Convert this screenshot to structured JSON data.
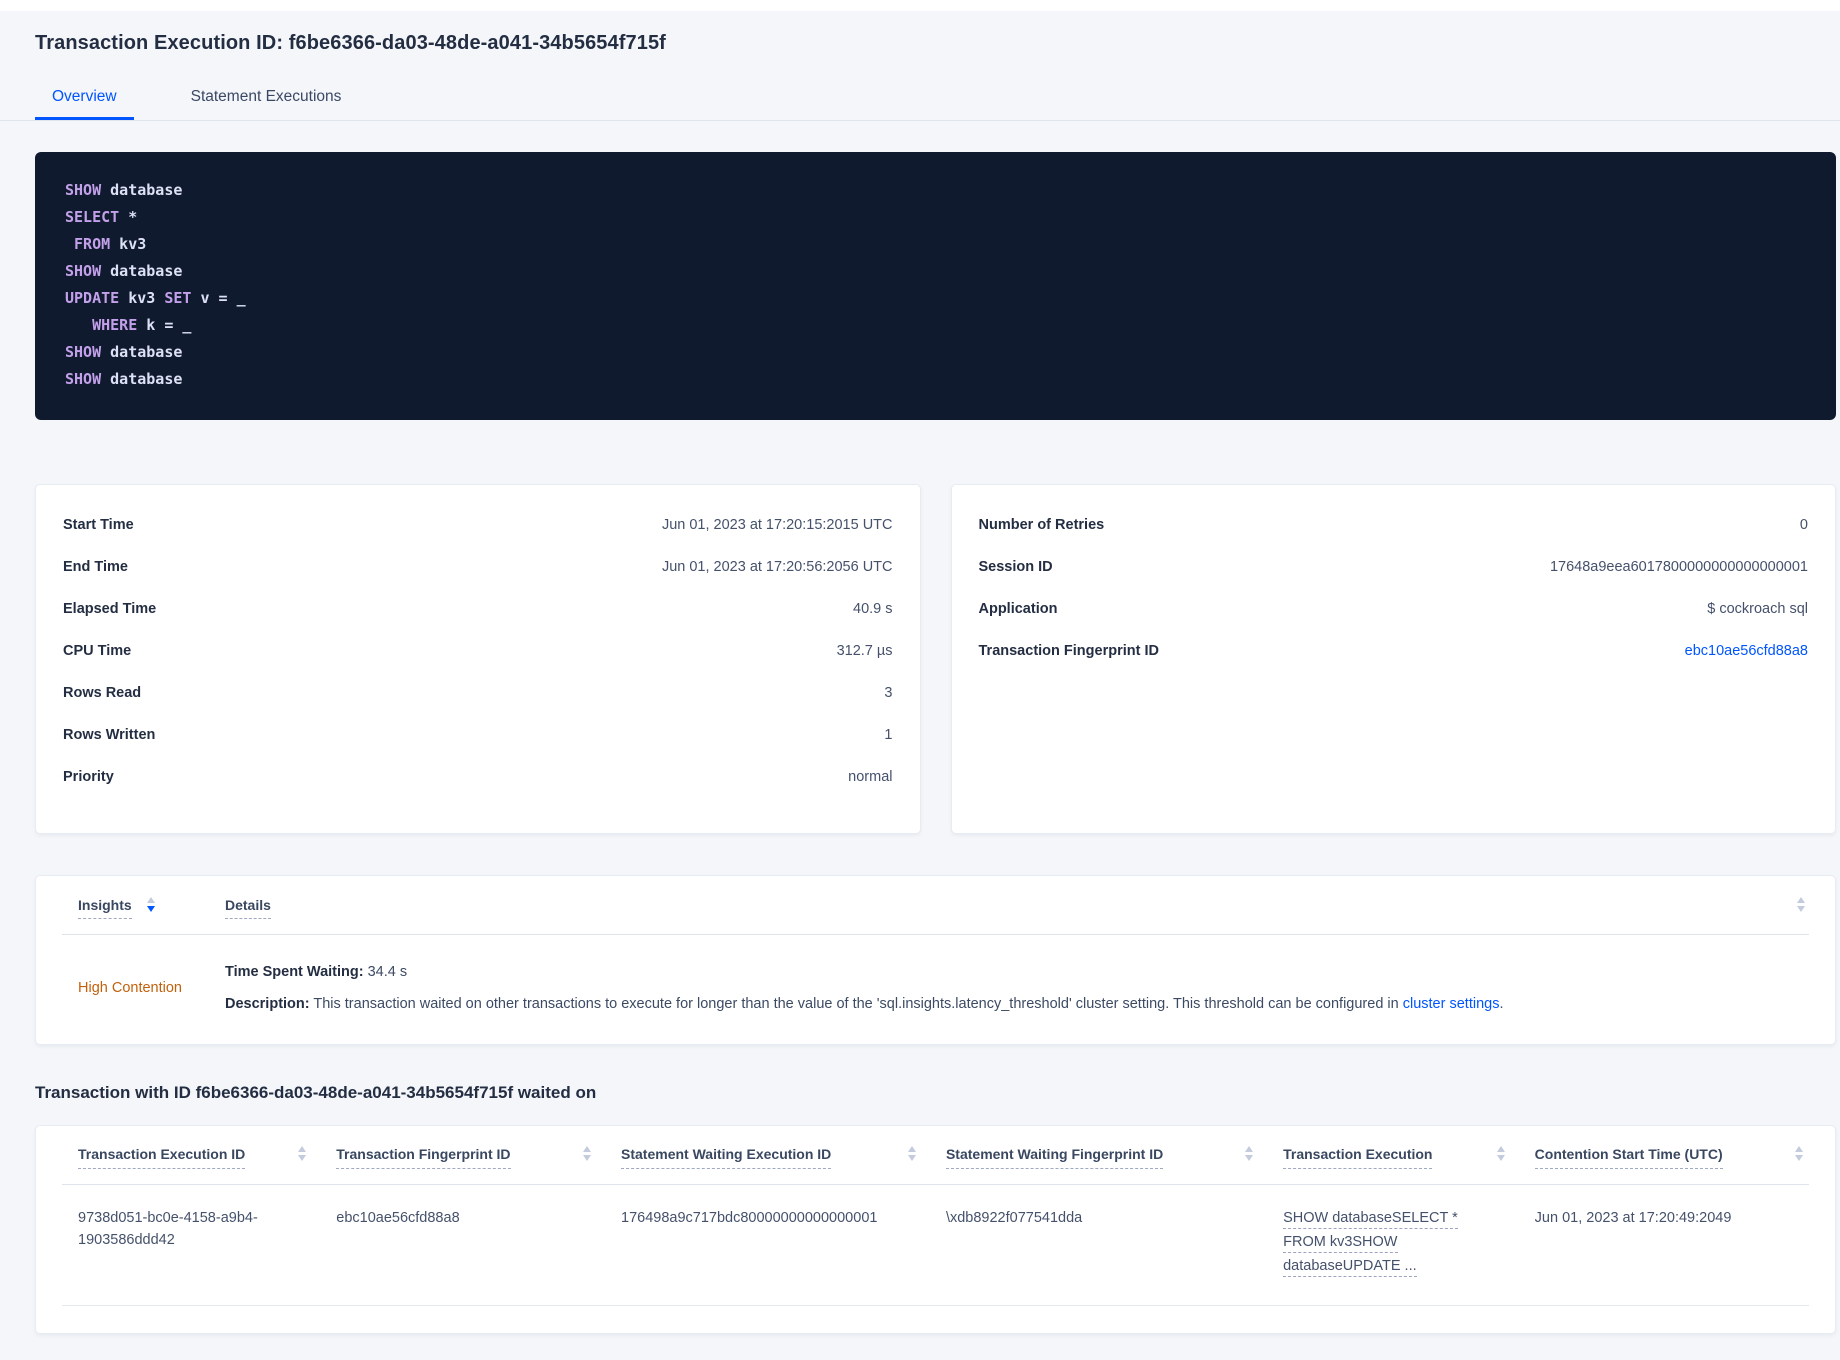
{
  "colors": {
    "accent_blue": "#0055ff",
    "insight_orange": "#c2610c",
    "code_background": "#101a2e",
    "code_keyword": "#c3a1ea",
    "code_plain": "#dde1f5",
    "page_background": "#f4f6fa"
  },
  "header": {
    "title": "Transaction Execution ID: f6be6366-da03-48de-a041-34b5654f715f",
    "tabs": [
      {
        "label": "Overview"
      },
      {
        "label": "Statement Executions"
      }
    ]
  },
  "sql_box": {
    "lines": [
      [
        {
          "t": "SHOW"
        },
        {
          "t": " database"
        }
      ],
      [
        {
          "t": "SELECT"
        },
        {
          "t": " *"
        }
      ],
      [
        {
          "t": " "
        },
        {
          "t": "FROM"
        },
        {
          "t": " kv3"
        }
      ],
      [
        {
          "t": "SHOW"
        },
        {
          "t": " database"
        }
      ],
      [
        {
          "t": "UPDATE"
        },
        {
          "t": " kv3 "
        },
        {
          "t": "SET"
        },
        {
          "t": " v = _"
        }
      ],
      [
        {
          "t": "   "
        },
        {
          "t": "WHERE"
        },
        {
          "t": " k = _"
        }
      ],
      [
        {
          "t": "SHOW"
        },
        {
          "t": " database"
        }
      ],
      [
        {
          "t": "SHOW"
        },
        {
          "t": " database"
        }
      ]
    ]
  },
  "summary_left": {
    "rows": [
      {
        "label": "Start Time",
        "value": "Jun 01, 2023 at 17:20:15:2015 UTC"
      },
      {
        "label": "End Time",
        "value": "Jun 01, 2023 at 17:20:56:2056 UTC"
      },
      {
        "label": "Elapsed Time",
        "value": "40.9 s"
      },
      {
        "label": "CPU Time",
        "value": "312.7 µs"
      },
      {
        "label": "Rows Read",
        "value": "3"
      },
      {
        "label": "Rows Written",
        "value": "1"
      },
      {
        "label": "Priority",
        "value": "normal"
      }
    ]
  },
  "summary_right": {
    "rows": [
      {
        "label": "Number of Retries",
        "value": "0"
      },
      {
        "label": "Session ID",
        "value": "17648a9eea6017800000000000000001"
      },
      {
        "label": "Application",
        "value": "$ cockroach sql"
      },
      {
        "label": "Transaction Fingerprint ID",
        "value": "ebc10ae56cfd88a8"
      }
    ]
  },
  "insights_table": {
    "col_insights": "Insights",
    "col_details": "Details",
    "row": {
      "insight": "High Contention",
      "waiting_label": "Time Spent Waiting:",
      "waiting_value": " 34.4 s",
      "desc_label": "Description:",
      "desc_text": " This transaction waited on other transactions to execute for longer than the value of the 'sql.insights.latency_threshold' cluster setting. This threshold can be configured in ",
      "desc_link": "cluster settings",
      "desc_suffix": "."
    }
  },
  "waited_section": {
    "heading": "Transaction with ID f6be6366-da03-48de-a041-34b5654f715f waited on",
    "columns": [
      "Transaction Execution ID",
      "Transaction Fingerprint ID",
      "Statement Waiting Execution ID",
      "Statement Waiting Fingerprint ID",
      "Transaction Execution",
      "Contention Start Time (UTC)"
    ],
    "row": {
      "transaction_execution_id": "9738d051-bc0e-4158-a9b4-1903586ddd42",
      "transaction_fingerprint_id": "ebc10ae56cfd88a8",
      "statement_waiting_execution_id": "176498a9c717bdc80000000000000001",
      "statement_waiting_fingerprint_id": "\\xdb8922f077541dda",
      "transaction_execution_lines": [
        "SHOW databaseSELECT *",
        "FROM kv3SHOW",
        "databaseUPDATE ..."
      ],
      "contention_start_time": "Jun 01, 2023 at 17:20:49:2049"
    }
  }
}
